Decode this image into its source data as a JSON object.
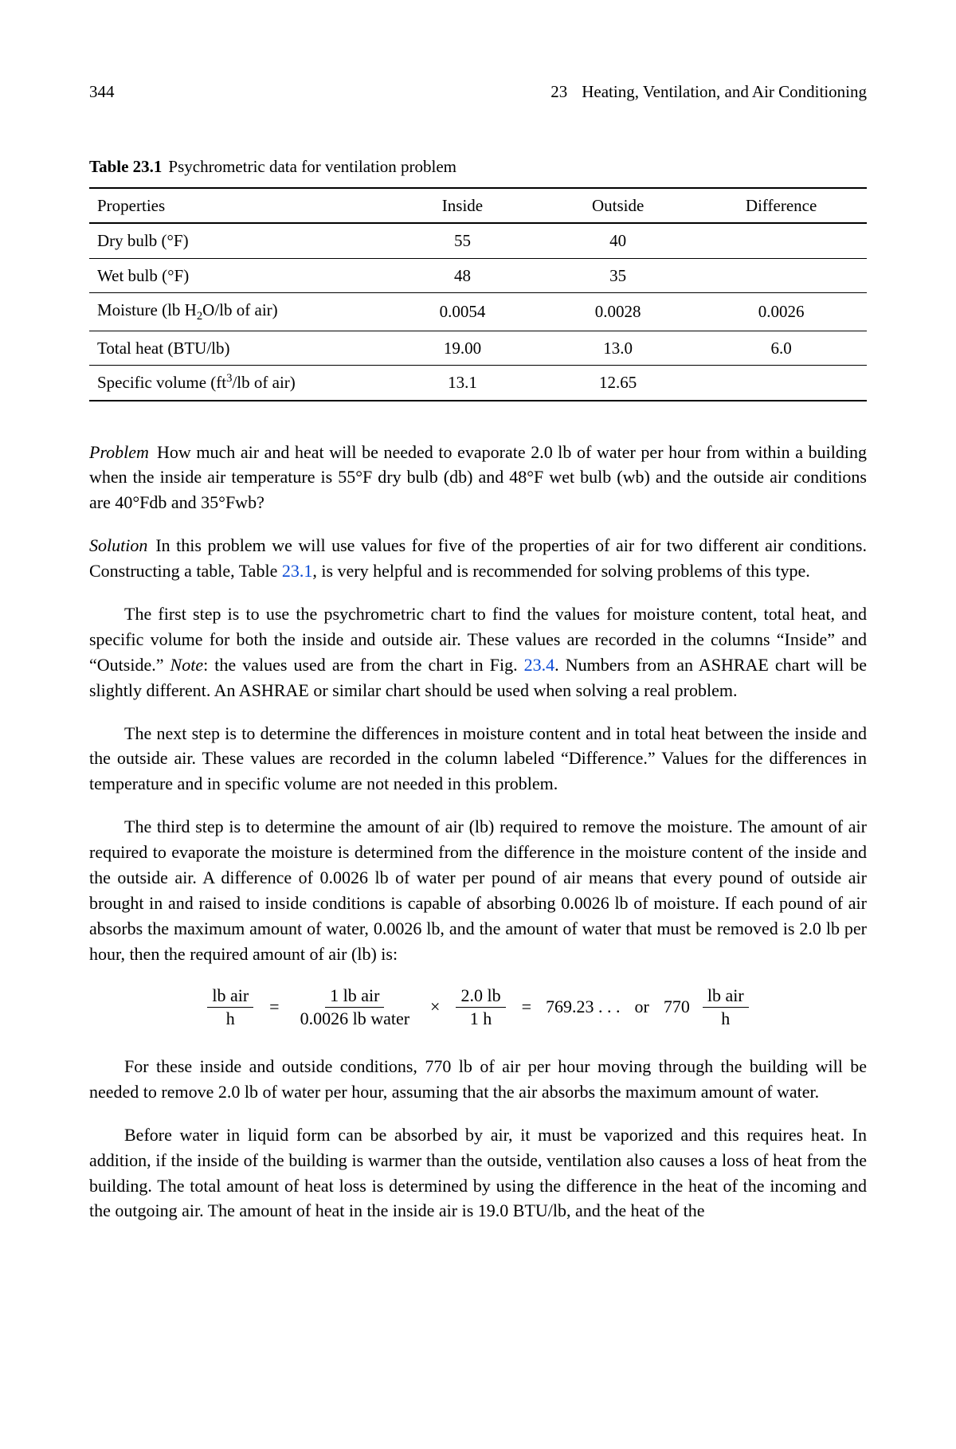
{
  "header": {
    "page_number": "344",
    "chapter_number": "23",
    "chapter_title": "Heating, Ventilation, and Air Conditioning"
  },
  "table": {
    "label": "Table 23.1",
    "caption": "Psychrometric data for ventilation problem",
    "columns": [
      "Properties",
      "Inside",
      "Outside",
      "Difference"
    ],
    "rows": {
      "dry_bulb": {
        "prop": "Dry bulb (°F)",
        "inside": "55",
        "outside": "40",
        "diff": ""
      },
      "wet_bulb": {
        "prop": "Wet bulb (°F)",
        "inside": "48",
        "outside": "35",
        "diff": ""
      },
      "moisture": {
        "prop_prefix": "Moisture (lb H",
        "prop_sub": "2",
        "prop_mid": "O/lb of air)",
        "inside": "0.0054",
        "outside": "0.0028",
        "diff": "0.0026"
      },
      "total_heat": {
        "prop": "Total heat (BTU/lb)",
        "inside": "19.00",
        "outside": "13.0",
        "diff": "6.0"
      },
      "sp_vol": {
        "prop_prefix": "Specific volume (ft",
        "prop_sup": "3",
        "prop_suffix": "/lb of air)",
        "inside": "13.1",
        "outside": "12.65",
        "diff": ""
      }
    }
  },
  "problem": {
    "label": "Problem",
    "text": "How much air and heat will be needed to evaporate 2.0 lb of water per hour from within a building when the inside air temperature is 55°F dry bulb (db) and 48°F wet bulb (wb) and the outside air conditions are 40°Fdb and 35°Fwb?"
  },
  "solution": {
    "label": "Solution",
    "para1_a": "In this problem we will use values for five of the properties of air for two different air conditions. Constructing a table, Table ",
    "table_ref": "23.1",
    "para1_b": ", is very helpful and is recommended for solving problems of this type.",
    "para2_a": "The first step is to use the psychrometric chart to find the values for moisture content, total heat, and specific volume for both the inside and outside air. These values are recorded in the columns “Inside” and “Outside.” ",
    "note_label": "Note",
    "para2_b": ": the values used are from the chart in Fig. ",
    "fig_ref": "23.4",
    "para2_c": ". Numbers from an ASHRAE chart will be slightly different. An ASHRAE or similar chart should be used when solving a real problem.",
    "para3": "The next step is to determine the differences in moisture content and in total heat between the inside and the outside air. These values are recorded in the column labeled “Difference.” Values for the differences in temperature and in specific volume are not needed in this problem.",
    "para4": "The third step is to determine the amount of air (lb) required to remove the moisture. The amount of air required to evaporate the moisture is determined from the difference in the moisture content of the inside and the outside air. A difference of 0.0026 lb of water per pound of air means that every pound of outside air brought in and raised to inside conditions is capable of absorbing 0.0026 lb of moisture. If each pound of air absorbs the maximum amount of water, 0.0026 lb, and the amount of water that must be removed is 2.0 lb per hour, then the required amount of air (lb) is:",
    "equation": {
      "f1_num": "lb  air",
      "f1_den": "h",
      "eq1": "=",
      "f2_num": "1  lb  air",
      "f2_den": "0.0026  lb  water",
      "times": "×",
      "f3_num": "2.0  lb",
      "f3_den": "1  h",
      "eq2": "=",
      "result": "769.23 . . .",
      "or": "or",
      "scalar770": "770",
      "f4_num": "lb  air",
      "f4_den": "h"
    },
    "para5": "For these inside and outside conditions, 770 lb of air per hour moving through the building will be needed to remove 2.0 lb of water per hour, assuming that the air absorbs the maximum amount of water.",
    "para6": "Before water in liquid form can be absorbed by air, it must be vaporized and this requires heat. In addition, if the inside of the building is warmer than the outside, ventilation also causes a loss of heat from the building. The total amount of heat loss is determined by using the difference in the heat of the incoming and the outgoing air. The amount of heat in the inside air is 19.0 BTU/lb, and the heat of the"
  }
}
